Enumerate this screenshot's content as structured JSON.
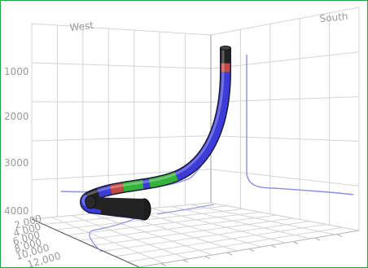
{
  "chart_data": {
    "type": "line",
    "title": "",
    "axes": {
      "west_label": "West",
      "south_label": "South",
      "depth_ticks": [
        "1000",
        "2000",
        "3000",
        "4000"
      ],
      "front_ticks": [
        "2,000",
        "4,000",
        "6,000",
        "8,000",
        "10,000",
        "12,000"
      ]
    },
    "wellbore": {
      "segments": [
        {
          "color": "#222222",
          "from": 0.0,
          "to": 0.05
        },
        {
          "color": "#c24a45",
          "from": 0.05,
          "to": 0.08
        },
        {
          "color": "#3c3cd8",
          "from": 0.08,
          "to": 0.48
        },
        {
          "color": "#35b23a",
          "from": 0.48,
          "to": 0.57
        },
        {
          "color": "#3c3cd8",
          "from": 0.57,
          "to": 0.59
        },
        {
          "color": "#35b23a",
          "from": 0.59,
          "to": 0.66
        },
        {
          "color": "#c24a45",
          "from": 0.66,
          "to": 0.7
        },
        {
          "color": "#3c3cd8",
          "from": 0.7,
          "to": 0.74
        },
        {
          "color": "#222222",
          "from": 0.74,
          "to": 0.78
        },
        {
          "color": "#3c3cd8",
          "from": 0.78,
          "to": 0.86
        },
        {
          "color": "#222222",
          "from": 0.86,
          "to": 1.0
        }
      ]
    },
    "grid": true,
    "colors": {
      "grid": "#d4d4d4",
      "projection": "#8c8ce0",
      "border": "#22a83a"
    }
  }
}
